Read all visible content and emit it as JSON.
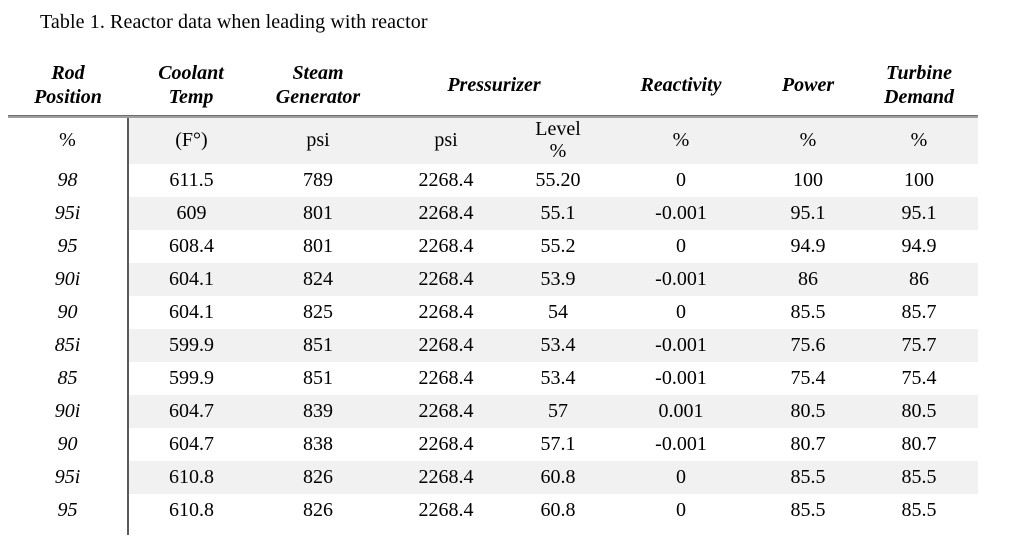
{
  "title": "Table 1. Reactor data when leading with reactor",
  "colors": {
    "row_shade": "#f1f1f1",
    "divider": "#5a5a5a",
    "rule_dark": "#6f6f6f",
    "rule_light": "#9f9f9f",
    "text": "#000000",
    "background": "#ffffff"
  },
  "table": {
    "headers": [
      {
        "label": "Rod\nPosition"
      },
      {
        "label": "Coolant\nTemp"
      },
      {
        "label": "Steam\nGenerator"
      },
      {
        "label": "Pressurizer"
      },
      {
        "label": "Reactivity"
      },
      {
        "label": "Power"
      },
      {
        "label": "Turbine\nDemand"
      }
    ],
    "units": [
      "%",
      "(F°)",
      "psi",
      "psi",
      "Level\n%",
      "%",
      "%",
      "%"
    ],
    "rows": [
      {
        "cells": [
          "98",
          "611.5",
          "789",
          "2268.4",
          "55.20",
          "0",
          "100",
          "100"
        ]
      },
      {
        "cells": [
          "95i",
          "609",
          "801",
          "2268.4",
          "55.1",
          "-0.001",
          "95.1",
          "95.1"
        ]
      },
      {
        "cells": [
          "95",
          "608.4",
          "801",
          "2268.4",
          "55.2",
          "0",
          "94.9",
          "94.9"
        ]
      },
      {
        "cells": [
          "90i",
          "604.1",
          "824",
          "2268.4",
          "53.9",
          "-0.001",
          "86",
          "86"
        ]
      },
      {
        "cells": [
          "90",
          "604.1",
          "825",
          "2268.4",
          "54",
          "0",
          "85.5",
          "85.7"
        ]
      },
      {
        "cells": [
          "85i",
          "599.9",
          "851",
          "2268.4",
          "53.4",
          "-0.001",
          "75.6",
          "75.7"
        ]
      },
      {
        "cells": [
          "85",
          "599.9",
          "851",
          "2268.4",
          "53.4",
          "-0.001",
          "75.4",
          "75.4"
        ]
      },
      {
        "cells": [
          "90i",
          "604.7",
          "839",
          "2268.4",
          "57",
          "0.001",
          "80.5",
          "80.5"
        ]
      },
      {
        "cells": [
          "90",
          "604.7",
          "838",
          "2268.4",
          "57.1",
          "-0.001",
          "80.7",
          "80.7"
        ]
      },
      {
        "cells": [
          "95i",
          "610.8",
          "826",
          "2268.4",
          "60.8",
          "0",
          "85.5",
          "85.5"
        ]
      },
      {
        "cells": [
          "95",
          "610.8",
          "826",
          "2268.4",
          "60.8",
          "0",
          "85.5",
          "85.5"
        ]
      }
    ]
  }
}
